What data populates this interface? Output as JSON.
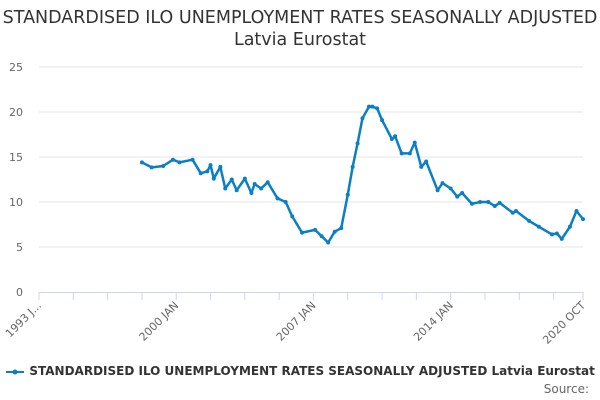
{
  "chart_data": {
    "type": "line",
    "title": "STANDARDISED ILO UNEMPLOYMENT RATES SEASONALLY ADJUSTED Latvia Eurostat",
    "xlabel": "",
    "ylabel": "",
    "xlim": [
      "1993-01",
      "2020-10"
    ],
    "ylim": [
      0,
      25
    ],
    "yticks": [
      "0",
      "5",
      "10",
      "15",
      "20",
      "25"
    ],
    "xtick_labels": [
      {
        "date": "1993-01",
        "label": "1993 J..."
      },
      {
        "date": "2000-01",
        "label": "2000 JAN"
      },
      {
        "date": "2007-01",
        "label": "2007 JAN"
      },
      {
        "date": "2014-01",
        "label": "2014 JAN"
      },
      {
        "date": "2020-10",
        "label": "2020 OCT"
      }
    ],
    "grid": true,
    "legend_position": "bottom",
    "series": [
      {
        "name": "STANDARDISED ILO UNEMPLOYMENT RATES SEASONALLY ADJUSTED Latvia Eurostat",
        "color": "#0a7fc4",
        "x": [
          "1998-04",
          "1998-10",
          "1999-05",
          "1999-11",
          "2000-03",
          "2000-11",
          "2001-04",
          "2001-08",
          "2001-10",
          "2001-12",
          "2002-04",
          "2002-07",
          "2002-11",
          "2003-02",
          "2003-07",
          "2003-11",
          "2004-01",
          "2004-05",
          "2004-09",
          "2005-03",
          "2005-08",
          "2005-12",
          "2006-06",
          "2007-02",
          "2007-06",
          "2007-10",
          "2008-02",
          "2008-06",
          "2008-10",
          "2009-01",
          "2009-04",
          "2009-07",
          "2009-11",
          "2010-01",
          "2010-04",
          "2010-07",
          "2011-01",
          "2011-03",
          "2011-07",
          "2011-12",
          "2012-03",
          "2012-07",
          "2012-10",
          "2013-05",
          "2013-08",
          "2014-01",
          "2014-05",
          "2014-08",
          "2015-02",
          "2015-07",
          "2015-12",
          "2016-04",
          "2016-07",
          "2017-03",
          "2017-05",
          "2018-01",
          "2018-07",
          "2019-03",
          "2019-06",
          "2019-09",
          "2020-02",
          "2020-06",
          "2020-10"
        ],
        "values": [
          14.4,
          13.85,
          14.0,
          14.7,
          14.4,
          14.7,
          13.2,
          13.4,
          14.1,
          12.6,
          13.9,
          11.5,
          12.5,
          11.3,
          12.6,
          11.0,
          12.0,
          11.5,
          12.2,
          10.4,
          10.0,
          8.4,
          6.6,
          6.9,
          6.2,
          5.5,
          6.7,
          7.1,
          10.8,
          13.9,
          16.5,
          19.3,
          20.6,
          20.6,
          20.4,
          19.1,
          17.0,
          17.3,
          15.4,
          15.4,
          16.6,
          13.9,
          14.5,
          11.3,
          12.1,
          11.5,
          10.6,
          11.0,
          9.8,
          10.0,
          10.0,
          9.55,
          9.9,
          8.8,
          9.0,
          7.9,
          7.25,
          6.4,
          6.5,
          5.9,
          7.25,
          9.0,
          8.1
        ]
      }
    ]
  },
  "source_label": "Source:"
}
